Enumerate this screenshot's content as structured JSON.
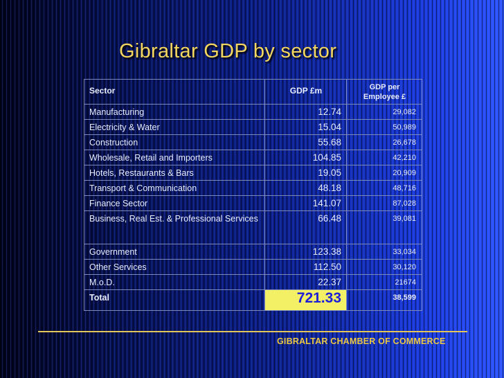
{
  "title": "Gibraltar GDP by sector",
  "colors": {
    "title": "#f5d75f",
    "highlight_bg": "#f4f066",
    "highlight_text": "#1d1fd8",
    "footer": "#ecc843"
  },
  "table": {
    "headers": {
      "sector": "Sector",
      "gdp": "GDP £m",
      "per_employee_line1": "GDP per",
      "per_employee_line2": "Employee £"
    },
    "rows": [
      {
        "sector": "Manufacturing",
        "gdp": "12.74",
        "per_employee": "29,082"
      },
      {
        "sector": "Electricity & Water",
        "gdp": "15.04",
        "per_employee": "50,989"
      },
      {
        "sector": "Construction",
        "gdp": "55.68",
        "per_employee": "26,678"
      },
      {
        "sector": "Wholesale, Retail and Importers",
        "gdp": "104.85",
        "per_employee": "42,210"
      },
      {
        "sector": "Hotels, Restaurants & Bars",
        "gdp": "19.05",
        "per_employee": "20,909"
      },
      {
        "sector": "Transport & Communication",
        "gdp": "48.18",
        "per_employee": "48,716"
      },
      {
        "sector": "Finance Sector",
        "gdp": "141.07",
        "per_employee": "87,028"
      },
      {
        "sector": "Business, Real Est. & Professional Services",
        "gdp": "66.48",
        "per_employee": "39,081"
      },
      {
        "sector": "Government",
        "gdp": "123.38",
        "per_employee": "33,034"
      },
      {
        "sector": "Other Services",
        "gdp": "112.50",
        "per_employee": "30,120"
      },
      {
        "sector": "M.o.D.",
        "gdp": "22.37",
        "per_employee": "21674"
      }
    ],
    "total": {
      "label": "Total",
      "gdp": "721.33",
      "per_employee": "38,599"
    }
  },
  "footer": "GIBRALTAR CHAMBER OF COMMERCE"
}
